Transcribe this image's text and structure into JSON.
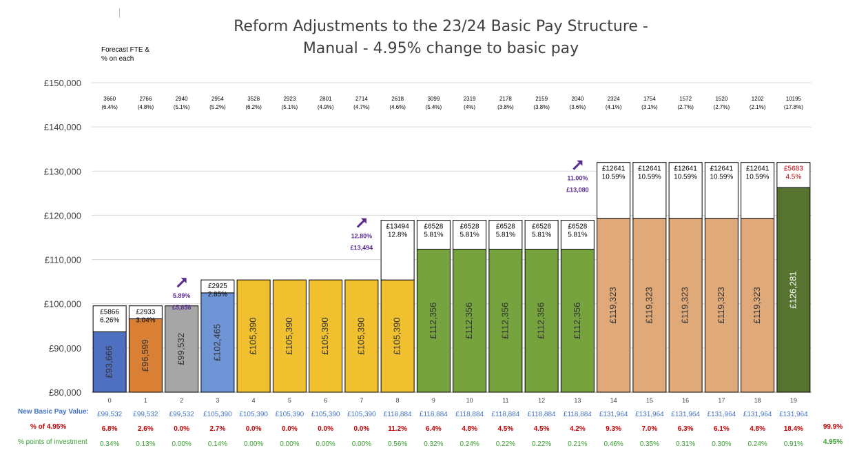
{
  "chart_data": {
    "type": "bar",
    "stacked": true,
    "title_line1": "Reform Adjustments to the 23/24 Basic Pay Structure  -",
    "title_line2": "Manual - 4.95% change to basic pay",
    "fte_note_line1": "Forecast FTE &",
    "fte_note_line2": "% on each",
    "y_axis": {
      "min": 80000,
      "max": 150000,
      "step": 10000,
      "tick_labels": [
        "£80,000",
        "£90,000",
        "£100,000",
        "£110,000",
        "£120,000",
        "£130,000",
        "£140,000",
        "£150,000"
      ]
    },
    "bars": [
      {
        "point": "0",
        "base": 93666,
        "base_label": "£93,666",
        "top": 99532,
        "inc_amt": "£5866",
        "inc_pct": "6.26%",
        "fill": "#4f6fc1",
        "fte": "3660",
        "fte_pct": "(6.4%)",
        "new_pay": "£99,532",
        "pct_of": "6.8%",
        "pts": "0.34%"
      },
      {
        "point": "1",
        "base": 96599,
        "base_label": "£96,599",
        "top": 99532,
        "inc_amt": "£2933",
        "inc_pct": "3.04%",
        "fill": "#d98034",
        "fte": "2766",
        "fte_pct": "(4.8%)",
        "new_pay": "£99,532",
        "pct_of": "2.6%",
        "pts": "0.13%"
      },
      {
        "point": "2",
        "base": 99532,
        "base_label": "£99,532",
        "top": 99532,
        "inc_amt": "",
        "inc_pct": "",
        "fill": "#a6a6a6",
        "fte": "2940",
        "fte_pct": "(5.1%)",
        "new_pay": "£99,532",
        "pct_of": "0.0%",
        "pts": "0.00%"
      },
      {
        "point": "3",
        "base": 102465,
        "base_label": "£102,465",
        "top": 105390,
        "inc_amt": "£2925",
        "inc_pct": "2.85%",
        "fill": "#6f95d6",
        "fte": "2954",
        "fte_pct": "(5.2%)",
        "new_pay": "£105,390",
        "pct_of": "2.7%",
        "pts": "0.14%"
      },
      {
        "point": "4",
        "base": 105390,
        "base_label": "£105,390",
        "top": 105390,
        "inc_amt": "",
        "inc_pct": "",
        "fill": "#f0c02e",
        "fte": "3528",
        "fte_pct": "(6.2%)",
        "new_pay": "£105,390",
        "pct_of": "0.0%",
        "pts": "0.00%"
      },
      {
        "point": "5",
        "base": 105390,
        "base_label": "£105,390",
        "top": 105390,
        "inc_amt": "",
        "inc_pct": "",
        "fill": "#f0c02e",
        "fte": "2923",
        "fte_pct": "(5.1%)",
        "new_pay": "£105,390",
        "pct_of": "0.0%",
        "pts": "0.00%"
      },
      {
        "point": "6",
        "base": 105390,
        "base_label": "£105,390",
        "top": 105390,
        "inc_amt": "",
        "inc_pct": "",
        "fill": "#f0c02e",
        "fte": "2801",
        "fte_pct": "(4.9%)",
        "new_pay": "£105,390",
        "pct_of": "0.0%",
        "pts": "0.00%"
      },
      {
        "point": "7",
        "base": 105390,
        "base_label": "£105,390",
        "top": 105390,
        "inc_amt": "",
        "inc_pct": "",
        "fill": "#f0c02e",
        "fte": "2714",
        "fte_pct": "(4.7%)",
        "new_pay": "£105,390",
        "pct_of": "0.0%",
        "pts": "0.00%"
      },
      {
        "point": "8",
        "base": 105390,
        "base_label": "£105,390",
        "top": 118884,
        "inc_amt": "£13494",
        "inc_pct": "12.8%",
        "fill": "#f0c02e",
        "fte": "2618",
        "fte_pct": "(4.6%)",
        "new_pay": "£118,884",
        "pct_of": "11.2%",
        "pts": "0.56%"
      },
      {
        "point": "9",
        "base": 112356,
        "base_label": "£112,356",
        "top": 118884,
        "inc_amt": "£6528",
        "inc_pct": "5.81%",
        "fill": "#77a33e",
        "fte": "3099",
        "fte_pct": "(5.4%)",
        "new_pay": "£118,884",
        "pct_of": "6.4%",
        "pts": "0.32%"
      },
      {
        "point": "10",
        "base": 112356,
        "base_label": "£112,356",
        "top": 118884,
        "inc_amt": "£6528",
        "inc_pct": "5.81%",
        "fill": "#77a33e",
        "fte": "2319",
        "fte_pct": "(4%)",
        "new_pay": "£118,884",
        "pct_of": "4.8%",
        "pts": "0.24%"
      },
      {
        "point": "11",
        "base": 112356,
        "base_label": "£112,356",
        "top": 118884,
        "inc_amt": "£6528",
        "inc_pct": "5.81%",
        "fill": "#77a33e",
        "fte": "2178",
        "fte_pct": "(3.8%)",
        "new_pay": "£118,884",
        "pct_of": "4.5%",
        "pts": "0.22%"
      },
      {
        "point": "12",
        "base": 112356,
        "base_label": "£112,356",
        "top": 118884,
        "inc_amt": "£6528",
        "inc_pct": "5.81%",
        "fill": "#77a33e",
        "fte": "2159",
        "fte_pct": "(3.8%)",
        "new_pay": "£118,884",
        "pct_of": "4.5%",
        "pts": "0.22%"
      },
      {
        "point": "13",
        "base": 112356,
        "base_label": "£112,356",
        "top": 118884,
        "inc_amt": "£6528",
        "inc_pct": "5.81%",
        "fill": "#77a33e",
        "fte": "2040",
        "fte_pct": "(3.6%)",
        "new_pay": "£118,884",
        "pct_of": "4.2%",
        "pts": "0.21%"
      },
      {
        "point": "14",
        "base": 119323,
        "base_label": "£119,323",
        "top": 131964,
        "inc_amt": "£12641",
        "inc_pct": "10.59%",
        "fill": "#e0a97a",
        "fte": "2324",
        "fte_pct": "(4.1%)",
        "new_pay": "£131,964",
        "pct_of": "9.3%",
        "pts": "0.46%"
      },
      {
        "point": "15",
        "base": 119323,
        "base_label": "£119,323",
        "top": 131964,
        "inc_amt": "£12641",
        "inc_pct": "10.59%",
        "fill": "#e0a97a",
        "fte": "1754",
        "fte_pct": "(3.1%)",
        "new_pay": "£131,964",
        "pct_of": "7.0%",
        "pts": "0.35%"
      },
      {
        "point": "16",
        "base": 119323,
        "base_label": "£119,323",
        "top": 131964,
        "inc_amt": "£12641",
        "inc_pct": "10.59%",
        "fill": "#e0a97a",
        "fte": "1572",
        "fte_pct": "(2.7%)",
        "new_pay": "£131,964",
        "pct_of": "6.3%",
        "pts": "0.31%"
      },
      {
        "point": "17",
        "base": 119323,
        "base_label": "£119,323",
        "top": 131964,
        "inc_amt": "£12641",
        "inc_pct": "10.59%",
        "fill": "#e0a97a",
        "fte": "1520",
        "fte_pct": "(2.7%)",
        "new_pay": "£131,964",
        "pct_of": "6.1%",
        "pts": "0.30%"
      },
      {
        "point": "18",
        "base": 119323,
        "base_label": "£119,323",
        "top": 131964,
        "inc_amt": "£12641",
        "inc_pct": "10.59%",
        "fill": "#e0a97a",
        "fte": "1202",
        "fte_pct": "(2.1%)",
        "new_pay": "£131,964",
        "pct_of": "4.8%",
        "pts": "0.24%"
      },
      {
        "point": "19",
        "base": 126281,
        "base_label": "£126,281",
        "top": 131964,
        "inc_amt": "£5683",
        "inc_pct": "4.5%",
        "fill": "#56732f",
        "fte": "10195",
        "fte_pct": "(17.8%)",
        "new_pay": "£131,964",
        "pct_of": "18.4%",
        "pts": "0.91%"
      }
    ],
    "annotations": [
      {
        "after_point": "2",
        "pct": "5.89%",
        "amount": "£5,858",
        "value": 105390
      },
      {
        "after_point": "7",
        "pct": "12.80%",
        "amount": "£13,494",
        "value": 118884
      },
      {
        "after_point": "13",
        "pct": "11.00%",
        "amount": "£13,080",
        "value": 131964
      }
    ],
    "row_labels": {
      "new_pay": "New Basic Pay Value:",
      "pct_of": "% of 4.95%",
      "pts": "% points of investment"
    },
    "totals": {
      "pct_of": "99.9%",
      "pts": "4.95%"
    },
    "colors": {
      "new_pay": "#4472c4",
      "pct_of": "#c00000",
      "pts": "#38a02f",
      "increment_red": "#c00000",
      "annotation": "#5b2c8f",
      "grid": "#d9d9d9"
    }
  }
}
